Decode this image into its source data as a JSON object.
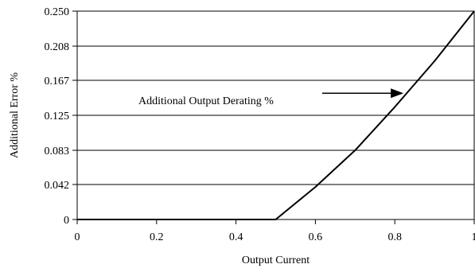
{
  "chart_data": {
    "type": "line",
    "title": "",
    "xlabel": "Output Current",
    "ylabel": "Additional Error %",
    "xlim": [
      0,
      1
    ],
    "ylim": [
      0,
      0.25
    ],
    "x_ticks": [
      0,
      0.2,
      0.4,
      0.6,
      0.8,
      1
    ],
    "x_tick_labels": [
      "0",
      "0.2",
      "0.4",
      "0.6",
      "0.8",
      "1"
    ],
    "y_ticks": [
      0,
      0.042,
      0.083,
      0.125,
      0.167,
      0.208,
      0.25
    ],
    "y_tick_labels": [
      "0",
      "0.042",
      "0.083",
      "0.125",
      "0.167",
      "0.208",
      "0.250"
    ],
    "grid": "horizontal",
    "series": [
      {
        "x": [
          0,
          0.5,
          0.6,
          0.7,
          0.8,
          0.9,
          1.0
        ],
        "y": [
          0,
          0,
          0.039,
          0.083,
          0.135,
          0.19,
          0.25
        ]
      }
    ],
    "annotations": [
      {
        "text": "Additional Output Derating %",
        "arrow_to_x": 0.83
      }
    ]
  }
}
